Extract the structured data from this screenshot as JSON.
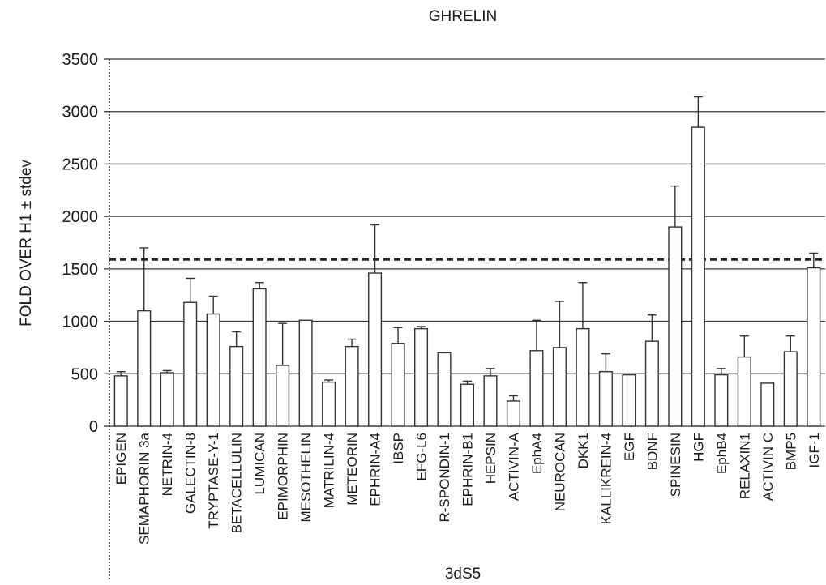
{
  "chart_data": {
    "type": "bar",
    "title": "GHRELIN",
    "xlabel": "3dS5",
    "ylabel": "FOLD OVER H1 ± stdev",
    "ylim": [
      0,
      3500
    ],
    "yticks": [
      0,
      500,
      1000,
      1500,
      2000,
      2500,
      3000,
      3500
    ],
    "grid": true,
    "reference_line": 1590,
    "categories": [
      "EPIGEN",
      "SEMAPHORIN 3a",
      "NETRIN-4",
      "GALECTIN-8",
      "TRYPTASE-Y-1",
      "BETACELLULIN",
      "LUMICAN",
      "EPIMORPHIN",
      "MESOTHELIN",
      "MATRILIN-4",
      "METEORIN",
      "EPHRIN-A4",
      "IBSP",
      "EFG-L6",
      "R-SPONDIN-1",
      "EPHRIN-B1",
      "HEPSIN",
      "ACTIVIN-A",
      "EphA4",
      "NEUROCAN",
      "DKK1",
      "KALLIKREIN-4",
      "EGF",
      "BDNF",
      "SPINESIN",
      "HGF",
      "EphB4",
      "RELAXIN1",
      "ACTIVIN C",
      "BMP5",
      "IGF-1"
    ],
    "values": [
      480,
      1100,
      510,
      1180,
      1070,
      760,
      1310,
      580,
      1010,
      420,
      760,
      1460,
      790,
      930,
      700,
      400,
      480,
      240,
      720,
      750,
      930,
      520,
      490,
      810,
      1900,
      2850,
      490,
      660,
      410,
      710,
      1510
    ],
    "errors": [
      40,
      600,
      20,
      230,
      170,
      140,
      60,
      400,
      0,
      20,
      70,
      460,
      150,
      20,
      0,
      30,
      70,
      50,
      290,
      440,
      440,
      170,
      0,
      250,
      390,
      290,
      60,
      200,
      0,
      150,
      140
    ]
  }
}
